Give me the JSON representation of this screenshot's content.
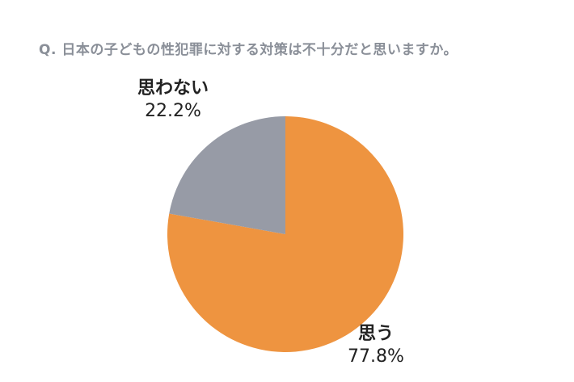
{
  "question": "Q. 日本の子どもの性犯罪に対する対策は不十分だと思いますか。",
  "chart_data": {
    "type": "pie",
    "title": "Q. 日本の子どもの性犯罪に対する対策は不十分だと思いますか。",
    "slices": [
      {
        "label": "思う",
        "value": 77.8,
        "value_label": "77.8%",
        "color": "#ee9440"
      },
      {
        "label": "思わない",
        "value": 22.2,
        "value_label": "22.2%",
        "color": "#979ba6"
      }
    ],
    "start_angle_deg": 0,
    "direction": "clockwise",
    "legend": "none"
  }
}
